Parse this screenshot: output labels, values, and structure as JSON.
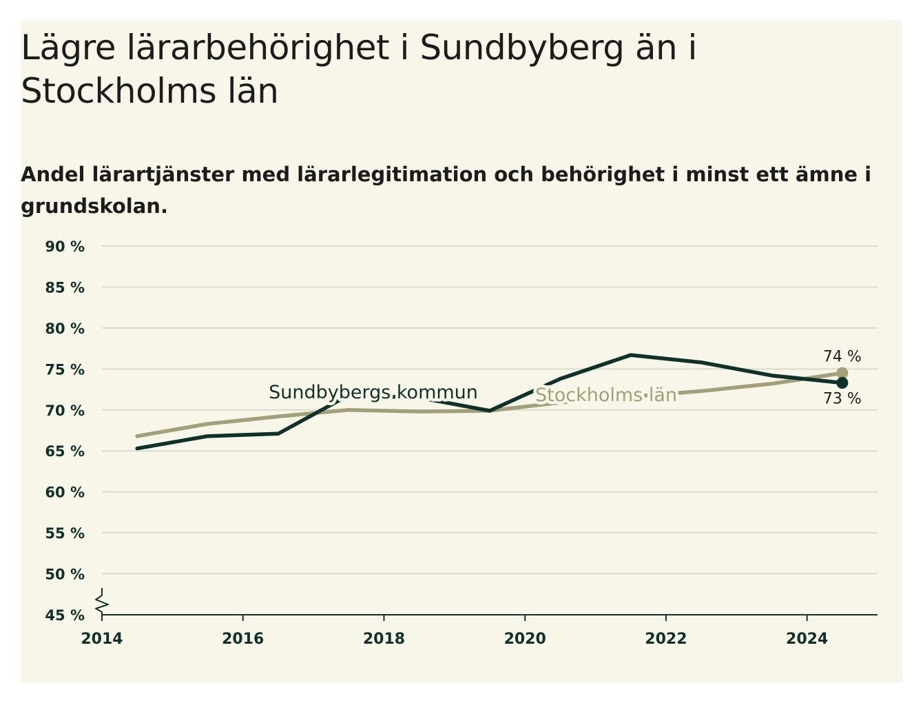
{
  "title": "Lägre lärarbehörighet i Sundbyberg än i Stockholms län",
  "subtitle": "Andel lärartjänster med lärarlegitimation och behörighet i minst ett ämne i grundskolan.",
  "colors": {
    "background": "#f8f6e9",
    "sundbyberg": "#0e3229",
    "stockholm": "#a39f78",
    "grid": "#dcdad0",
    "axis": "#10302a"
  },
  "chart_data": {
    "type": "line",
    "x_ticks": [
      2014,
      2016,
      2018,
      2020,
      2022,
      2024
    ],
    "x_tick_labels": [
      "2014",
      "2016",
      "2018",
      "2020",
      "2022",
      "2024"
    ],
    "xlim": [
      2014,
      2025
    ],
    "y_ticks": [
      45,
      50,
      55,
      60,
      65,
      70,
      75,
      80,
      85,
      90
    ],
    "y_tick_labels": [
      "45 %",
      "50 %",
      "55 %",
      "60 %",
      "65 %",
      "70 %",
      "75 %",
      "80 %",
      "85 %",
      "90 %"
    ],
    "ylim": [
      45,
      90
    ],
    "axis_break": true,
    "grid": true,
    "series": [
      {
        "name": "Stockholms län",
        "color": "#a39f78",
        "x": [
          2014.5,
          2015.5,
          2016.5,
          2017.5,
          2018.5,
          2019.5,
          2020.5,
          2021.5,
          2022.5,
          2023.5,
          2024.5
        ],
        "values": [
          66.8,
          68.3,
          69.2,
          70.0,
          69.8,
          69.9,
          70.9,
          71.6,
          72.3,
          73.2,
          74.5
        ],
        "end_label": "74 %"
      },
      {
        "name": "Sundbybergs kommun",
        "color": "#0e3229",
        "x": [
          2014.5,
          2015.5,
          2016.5,
          2017.5,
          2018.5,
          2019.5,
          2020.5,
          2021.5,
          2022.5,
          2023.5,
          2024.5
        ],
        "values": [
          65.3,
          66.8,
          67.1,
          71.8,
          71.5,
          69.9,
          73.8,
          76.7,
          75.8,
          74.2,
          73.3
        ],
        "end_label": "73 %"
      }
    ]
  }
}
